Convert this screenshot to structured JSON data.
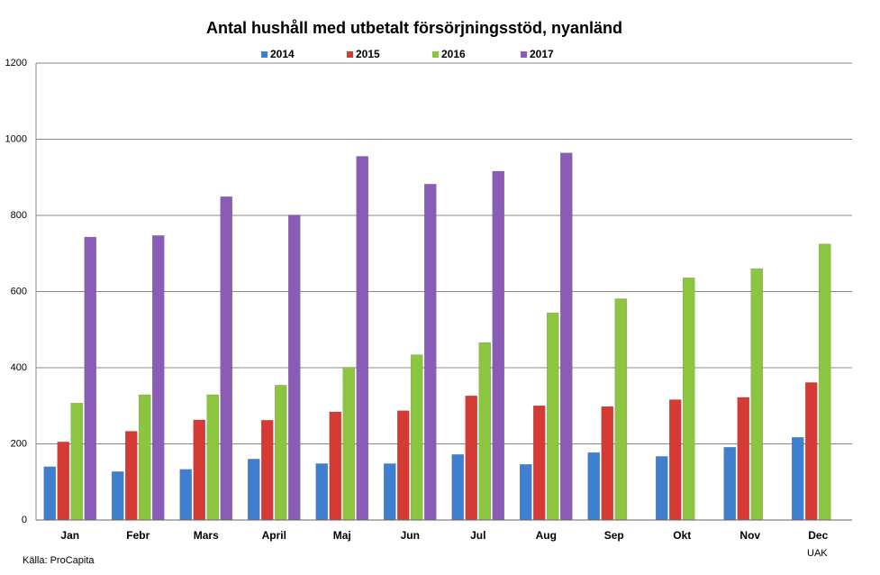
{
  "chart_data": {
    "type": "bar",
    "title": "Antal hushåll med utbetalt försörjningsstöd, nyanländ",
    "categories": [
      "Jan",
      "Febr",
      "Mars",
      "April",
      "Maj",
      "Jun",
      "Jul",
      "Aug",
      "Sep",
      "Okt",
      "Nov",
      "Dec"
    ],
    "series": [
      {
        "name": "2014",
        "color": "#3f7fcf",
        "values": [
          140,
          127,
          133,
          160,
          148,
          148,
          172,
          146,
          177,
          167,
          191,
          217
        ]
      },
      {
        "name": "2015",
        "color": "#d63a34",
        "values": [
          205,
          233,
          263,
          262,
          284,
          287,
          326,
          300,
          298,
          316,
          322,
          361
        ]
      },
      {
        "name": "2016",
        "color": "#8cc63e",
        "values": [
          307,
          329,
          329,
          354,
          401,
          434,
          466,
          544,
          581,
          636,
          660,
          725
        ]
      },
      {
        "name": "2017",
        "color": "#8a5cb8",
        "values": [
          743,
          747,
          849,
          801,
          955,
          882,
          916,
          964,
          null,
          null,
          null,
          null
        ]
      }
    ],
    "ylim": [
      0,
      1200
    ],
    "yticks": [
      0,
      200,
      400,
      600,
      800,
      1000,
      1200
    ],
    "grid": true,
    "legend": "top",
    "source": "Källa: ProCapita",
    "note": "UAK"
  }
}
